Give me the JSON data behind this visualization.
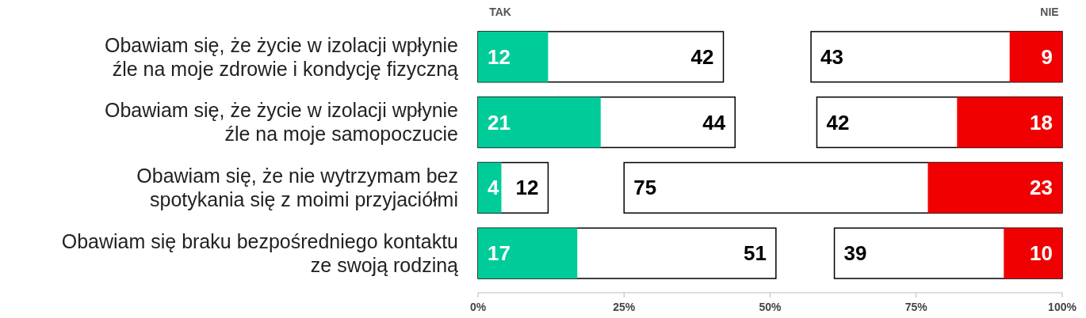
{
  "chart_data": {
    "type": "bar",
    "orientation": "horizontal",
    "categories": [
      "Obawiam się, że życie w izolacji wpłynie źle na moje zdrowie i kondycję fizyczną",
      "Obawiam się, że życie w izolacji wpłynie źle na moje samopoczucie",
      "Obawiam się, że nie wytrzymam bez spotykania się z moimi przyjaciółmi",
      "Obawiam się braku bezpośredniego kontaktu ze swoją rodziną"
    ],
    "series": [
      {
        "color": "#ffffff",
        "base": [
          0,
          0,
          0,
          0
        ],
        "values": [
          42,
          44,
          12,
          51
        ],
        "value_labels": [
          "42",
          "44",
          "12",
          "51"
        ]
      },
      {
        "color": "#00cc99",
        "base": [
          0,
          0,
          0,
          0
        ],
        "values": [
          12,
          21,
          4,
          17
        ],
        "value_labels": [
          "12",
          "21",
          "4",
          "17"
        ]
      },
      {
        "color": "#ffffff",
        "base": [
          57,
          58,
          25,
          61
        ],
        "values": [
          43,
          42,
          75,
          39
        ],
        "value_labels": [
          "43",
          "42",
          "75",
          "39"
        ]
      },
      {
        "color": "#f00000",
        "base": [
          91,
          82,
          77,
          90
        ],
        "values": [
          9,
          18,
          23,
          10
        ],
        "value_labels": [
          "9",
          "18",
          "23",
          "10"
        ]
      }
    ],
    "xlim": [
      0,
      100
    ],
    "xticks": [
      {
        "value": 0,
        "label": "0%"
      },
      {
        "value": 25,
        "label": "25%"
      },
      {
        "value": 50,
        "label": "50%"
      },
      {
        "value": 75,
        "label": "75%"
      },
      {
        "value": 100,
        "label": "100%"
      }
    ],
    "annotations": [
      "TAK",
      "NIE"
    ],
    "grid": false
  }
}
